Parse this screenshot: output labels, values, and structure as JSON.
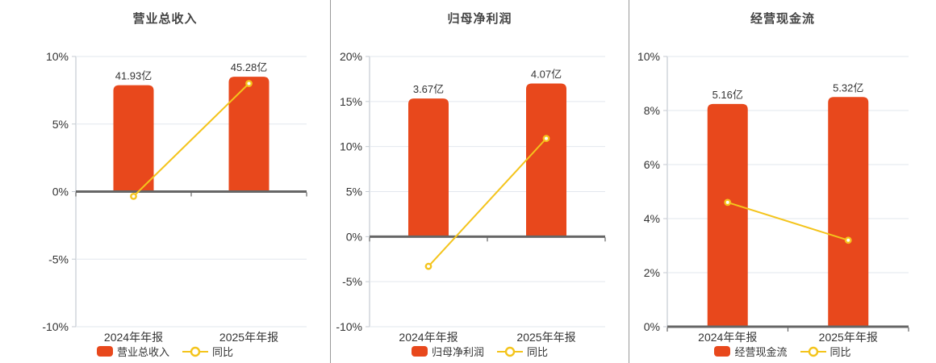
{
  "colors": {
    "bar": "#e8481c",
    "line": "#f4c41c",
    "grid": "#e2e7ee",
    "axis": "#c4cad1",
    "zero_line": "#666666",
    "text": "#333333",
    "title": "#444444",
    "divider": "#999999",
    "background": "#ffffff"
  },
  "chart_data": [
    {
      "type": "bar",
      "title": "营业总收入",
      "categories": [
        "2024年年报",
        "2025年年报"
      ],
      "bar_series": {
        "name": "营业总收入",
        "values_yi": [
          41.93,
          45.28
        ],
        "labels": [
          "41.93亿",
          "45.28亿"
        ],
        "unit": "亿"
      },
      "line_series": {
        "name": "同比",
        "values_pct": [
          -0.35,
          8.0
        ]
      },
      "ylim": [
        -10,
        10
      ],
      "yticks": [
        -10,
        -5,
        0,
        5,
        10
      ],
      "ytick_labels": [
        "-10%",
        "-5%",
        "0%",
        "5%",
        "10%"
      ],
      "grid": true,
      "legend_position": "bottom"
    },
    {
      "type": "bar",
      "title": "归母净利润",
      "categories": [
        "2024年年报",
        "2025年年报"
      ],
      "bar_series": {
        "name": "归母净利润",
        "values_yi": [
          3.67,
          4.07
        ],
        "labels": [
          "3.67亿",
          "4.07亿"
        ],
        "unit": "亿"
      },
      "line_series": {
        "name": "同比",
        "values_pct": [
          -3.3,
          10.9
        ]
      },
      "ylim": [
        -10,
        20
      ],
      "yticks": [
        -10,
        -5,
        0,
        5,
        10,
        15,
        20
      ],
      "ytick_labels": [
        "-10%",
        "-5%",
        "0%",
        "5%",
        "10%",
        "15%",
        "20%"
      ],
      "grid": true,
      "legend_position": "bottom"
    },
    {
      "type": "bar",
      "title": "经营现金流",
      "categories": [
        "2024年年报",
        "2025年年报"
      ],
      "bar_series": {
        "name": "经营现金流",
        "values_yi": [
          5.16,
          5.32
        ],
        "labels": [
          "5.16亿",
          "5.32亿"
        ],
        "unit": "亿"
      },
      "line_series": {
        "name": "同比",
        "values_pct": [
          4.6,
          3.2
        ]
      },
      "ylim": [
        0,
        10
      ],
      "yticks": [
        0,
        2,
        4,
        6,
        8,
        10
      ],
      "ytick_labels": [
        "0%",
        "2%",
        "4%",
        "6%",
        "8%",
        "10%"
      ],
      "grid": true,
      "legend_position": "bottom"
    }
  ]
}
